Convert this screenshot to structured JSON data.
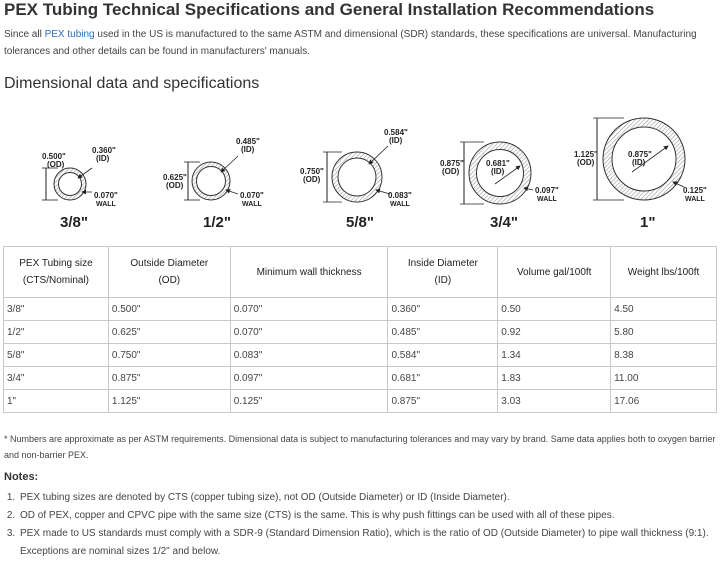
{
  "title": "PEX Tubing Technical Specifications and General Installation Recommendations",
  "intro": {
    "before_link": "Since all ",
    "link_text": "PEX tubing",
    "after_link": " used in the US is manufactured to the same ASTM and dimensional (SDR) standards, these specifications are universal. Manufacturing tolerances and other details can be found in manufacturers' manuals."
  },
  "section_heading": "Dimensional data and specifications",
  "diagram": {
    "sizes": [
      {
        "size_label": "3/8\"",
        "od": "0.500\"",
        "od_tag": "(OD)",
        "id": "0.360\"",
        "id_tag": "(ID)",
        "wall": "0.070\"",
        "wall_tag": "WALL"
      },
      {
        "size_label": "1/2\"",
        "od": "0.625\"",
        "od_tag": "(OD)",
        "id": "0.485\"",
        "id_tag": "(ID)",
        "wall": "0.070\"",
        "wall_tag": "WALL"
      },
      {
        "size_label": "5/8\"",
        "od": "0.750\"",
        "od_tag": "(OD)",
        "id": "0.584\"",
        "id_tag": "(ID)",
        "wall": "0.083\"",
        "wall_tag": "WALL"
      },
      {
        "size_label": "3/4\"",
        "od": "0.875\"",
        "od_tag": "(OD)",
        "id": "0.681\"",
        "id_tag": "(ID)",
        "wall": "0.097\"",
        "wall_tag": "WALL"
      },
      {
        "size_label": "1\"",
        "od": "1.125\"",
        "od_tag": "(OD)",
        "id": "0.875\"",
        "id_tag": "(ID)",
        "wall": "0.125\"",
        "wall_tag": "WALL"
      }
    ]
  },
  "table": {
    "headers": [
      {
        "line1": "PEX Tubing size",
        "line2": "(CTS/Nominal)"
      },
      {
        "line1": "Outside Diameter",
        "line2": "(OD)"
      },
      {
        "line1": "Minimum wall thickness",
        "line2": ""
      },
      {
        "line1": "Inside Diameter",
        "line2": "(ID)"
      },
      {
        "line1": "Volume gal/100ft",
        "line2": ""
      },
      {
        "line1": "Weight lbs/100ft",
        "line2": ""
      }
    ],
    "rows": [
      [
        "3/8\"",
        "0.500\"",
        "0.070\"",
        "0.360\"",
        "0.50",
        "4.50"
      ],
      [
        "1/2\"",
        "0.625\"",
        "0.070\"",
        "0.485\"",
        "0.92",
        "5.80"
      ],
      [
        "5/8\"",
        "0.750\"",
        "0.083\"",
        "0.584\"",
        "1.34",
        "8.38"
      ],
      [
        "3/4\"",
        "0.875\"",
        "0.097\"",
        "0.681\"",
        "1.83",
        "11.00"
      ],
      [
        "1\"",
        "1.125\"",
        "0.125\"",
        "0.875\"",
        "3.03",
        "17.06"
      ]
    ]
  },
  "footnote": "* Numbers are approximate as per ASTM requirements. Dimensional data is subject to manufacturing tolerances and may vary by brand. Same data applies both to oxygen barrier and non-barrier PEX.",
  "notes": {
    "title": "Notes:",
    "items": [
      "PEX tubing sizes are denoted by CTS (copper tubing size), not OD (Outside Diameter) or ID (Inside Diameter).",
      "OD of PEX, copper and CPVC pipe with the same size (CTS) is the same. This is why push fittings can be used with all of these pipes.",
      "PEX made to US standards must comply with a SDR-9 (Standard Dimension Ratio), which is the ratio of OD (Outside Diameter) to pipe wall thickness (9:1). Exceptions are nominal sizes 1/2\" and below."
    ]
  },
  "colors": {
    "link": "#2a6ebb",
    "text": "#333333",
    "border": "#c9c9c9"
  }
}
